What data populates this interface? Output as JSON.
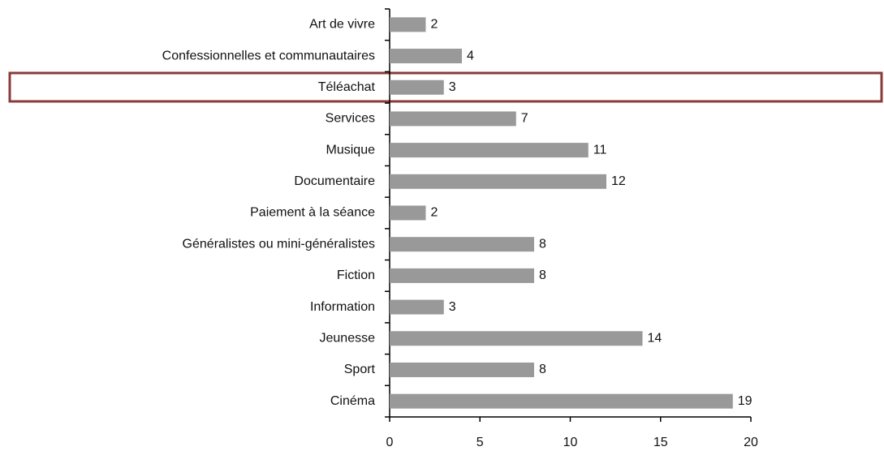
{
  "chart_data": {
    "type": "bar",
    "orientation": "horizontal",
    "categories": [
      "Art de vivre",
      "Confessionnelles et communautaires",
      "Téléachat",
      "Services",
      "Musique",
      "Documentaire",
      "Paiement à la séance",
      "Généralistes ou mini-généralistes",
      "Fiction",
      "Information",
      "Jeunesse",
      "Sport",
      "Cinéma"
    ],
    "values": [
      2,
      4,
      3,
      7,
      11,
      12,
      2,
      8,
      8,
      3,
      14,
      8,
      19
    ],
    "color": "#999999",
    "xlim": [
      0,
      20
    ],
    "xticks": [
      0,
      5,
      10,
      15,
      20
    ]
  }
}
